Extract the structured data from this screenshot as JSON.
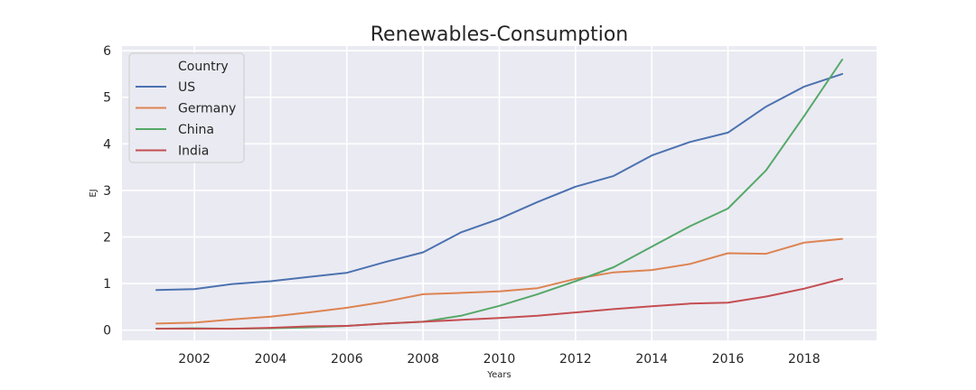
{
  "chart_data": {
    "type": "line",
    "title": "Renewables-Consumption",
    "xlabel": "Years",
    "ylabel": "EJ",
    "xlim": [
      2000.1,
      2019.9
    ],
    "ylim": [
      -0.22,
      6.1
    ],
    "x_ticks": [
      2002,
      2004,
      2006,
      2008,
      2010,
      2012,
      2014,
      2016,
      2018
    ],
    "y_ticks": [
      0,
      1,
      2,
      3,
      4,
      5,
      6
    ],
    "grid": true,
    "background": "#eaeaf2",
    "legend": {
      "title": "Country",
      "placement": "top-left"
    },
    "x": [
      2001,
      2002,
      2003,
      2004,
      2005,
      2006,
      2007,
      2008,
      2009,
      2010,
      2011,
      2012,
      2013,
      2014,
      2015,
      2016,
      2017,
      2018,
      2019
    ],
    "series": [
      {
        "name": "US",
        "color": "#4c72b0",
        "values": [
          0.86,
          0.88,
          0.99,
          1.05,
          1.14,
          1.23,
          1.46,
          1.67,
          2.1,
          2.39,
          2.75,
          3.08,
          3.31,
          3.75,
          4.04,
          4.24,
          4.8,
          5.23,
          5.5
        ]
      },
      {
        "name": "Germany",
        "color": "#dd8452",
        "values": [
          0.14,
          0.16,
          0.23,
          0.29,
          0.38,
          0.48,
          0.61,
          0.77,
          0.8,
          0.83,
          0.9,
          1.1,
          1.24,
          1.29,
          1.42,
          1.65,
          1.64,
          1.88,
          1.96
        ]
      },
      {
        "name": "China",
        "color": "#55a868",
        "values": [
          0.03,
          0.04,
          0.03,
          0.04,
          0.06,
          0.09,
          0.14,
          0.18,
          0.31,
          0.52,
          0.77,
          1.05,
          1.35,
          1.79,
          2.23,
          2.61,
          3.43,
          4.6,
          5.81
        ]
      },
      {
        "name": "India",
        "color": "#c44e52",
        "values": [
          0.03,
          0.03,
          0.03,
          0.05,
          0.08,
          0.09,
          0.14,
          0.18,
          0.22,
          0.26,
          0.31,
          0.38,
          0.45,
          0.51,
          0.57,
          0.59,
          0.72,
          0.89,
          1.1
        ]
      }
    ]
  }
}
